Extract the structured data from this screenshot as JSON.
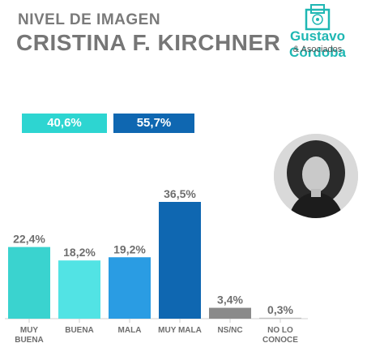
{
  "header": {
    "subtitle": "NIVEL DE IMAGEN",
    "title": "CRISTINA F. KIRCHNER"
  },
  "logo": {
    "name": "Gustavo Córdoba",
    "sub": "& Asociados",
    "brand_color": "#1fb7b3"
  },
  "summary": {
    "positive": "40,6%",
    "negative": "55,7%",
    "positive_color": "#2dd5d1",
    "negative_color": "#0f67b1"
  },
  "chart_data": {
    "type": "bar",
    "categories": [
      [
        "MUY",
        "BUENA"
      ],
      [
        "BUENA"
      ],
      [
        "MALA"
      ],
      [
        "MUY MALA"
      ],
      [
        "NS/NC"
      ],
      [
        "NO LO",
        "CONOCE"
      ]
    ],
    "values": [
      22.4,
      18.2,
      19.2,
      36.5,
      3.4,
      0.3
    ],
    "labels": [
      "22,4%",
      "18,2%",
      "19,2%",
      "36,5%",
      "3,4%",
      "0,3%"
    ],
    "colors": [
      "#3ad3cf",
      "#52e3e4",
      "#2a9ce3",
      "#0f67b1",
      "#8a8a8a",
      "#c0c0c0"
    ],
    "ylim": [
      0,
      36.5
    ]
  }
}
